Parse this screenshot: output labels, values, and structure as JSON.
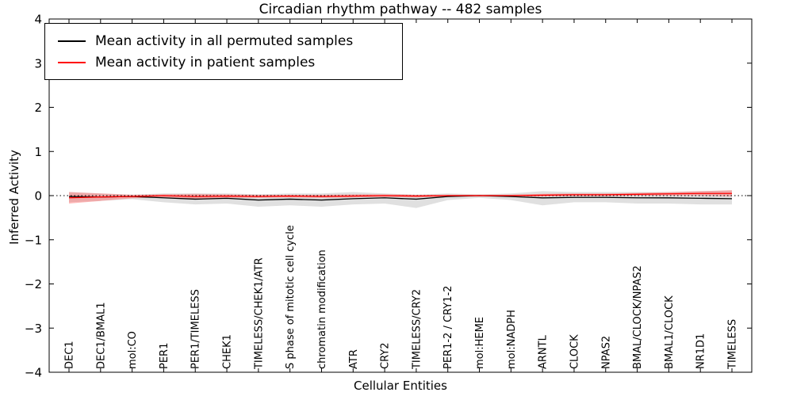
{
  "figure": {
    "title": "Circadian rhythm pathway -- 482 samples",
    "xlabel": "Cellular Entities",
    "ylabel": "Inferred Activity"
  },
  "chart_data": {
    "type": "line",
    "title": "Circadian rhythm pathway -- 482 samples",
    "xlabel": "Cellular Entities",
    "ylabel": "Inferred Activity",
    "ylim": [
      -4,
      4
    ],
    "yticks": [
      -4,
      -3,
      -2,
      -1,
      0,
      1,
      2,
      3,
      4
    ],
    "grid": false,
    "legend_position": "upper-left",
    "zero_line": {
      "value": 0,
      "style": "dotted",
      "color": "#000000"
    },
    "categories": [
      "DEC1",
      "DEC1/BMAL1",
      "mol:CO",
      "PER1",
      "PER1/TIMELESS",
      "CHEK1",
      "TIMELESS/CHEK1/ATR",
      "S phase of mitotic cell cycle",
      "chromatin modification",
      "ATR",
      "CRY2",
      "TIMELESS/CRY2",
      "PER1-2 / CRY1-2",
      "mol:HEME",
      "mol:NADPH",
      "ARNTL",
      "CLOCK",
      "NPAS2",
      "BMAL/CLOCK/NPAS2",
      "BMAL1/CLOCK",
      "NR1D1",
      "TIMELESS"
    ],
    "series": [
      {
        "name": "Mean activity in all permuted samples",
        "color": "#000000",
        "band_color": "#bbbbbb",
        "band_opacity": 0.45,
        "values": [
          -0.02,
          -0.03,
          -0.02,
          -0.05,
          -0.08,
          -0.06,
          -0.1,
          -0.08,
          -0.1,
          -0.07,
          -0.05,
          -0.08,
          -0.02,
          0.0,
          -0.02,
          -0.05,
          -0.04,
          -0.04,
          -0.05,
          -0.05,
          -0.06,
          -0.07
        ],
        "band_upper": [
          0.08,
          0.05,
          0.02,
          0.05,
          0.05,
          0.05,
          0.03,
          0.05,
          0.05,
          0.08,
          0.05,
          0.02,
          0.05,
          0.03,
          0.05,
          0.1,
          0.08,
          0.08,
          0.08,
          0.08,
          0.1,
          0.12
        ],
        "band_lower": [
          -0.15,
          -0.12,
          -0.08,
          -0.15,
          -0.2,
          -0.18,
          -0.25,
          -0.22,
          -0.25,
          -0.2,
          -0.18,
          -0.28,
          -0.1,
          -0.05,
          -0.1,
          -0.22,
          -0.15,
          -0.15,
          -0.18,
          -0.18,
          -0.2,
          -0.2
        ]
      },
      {
        "name": "Mean activity in patient samples",
        "color": "#ff0000",
        "band_color": "#ff6666",
        "band_opacity": 0.45,
        "values": [
          -0.05,
          -0.03,
          -0.02,
          0.0,
          -0.02,
          -0.01,
          -0.02,
          -0.01,
          -0.02,
          -0.01,
          0.0,
          -0.01,
          0.0,
          0.0,
          0.0,
          0.01,
          0.02,
          0.02,
          0.03,
          0.04,
          0.05,
          0.05
        ],
        "band_upper": [
          0.08,
          0.05,
          0.02,
          0.03,
          0.04,
          0.03,
          0.02,
          0.02,
          0.02,
          0.03,
          0.03,
          0.02,
          0.02,
          0.02,
          0.02,
          0.04,
          0.05,
          0.05,
          0.06,
          0.08,
          0.1,
          0.12
        ],
        "band_lower": [
          -0.18,
          -0.12,
          -0.06,
          -0.04,
          -0.08,
          -0.05,
          -0.05,
          -0.04,
          -0.05,
          -0.04,
          -0.03,
          -0.04,
          -0.02,
          -0.02,
          -0.02,
          -0.02,
          -0.01,
          -0.01,
          0.0,
          0.0,
          0.0,
          -0.02
        ]
      }
    ]
  }
}
